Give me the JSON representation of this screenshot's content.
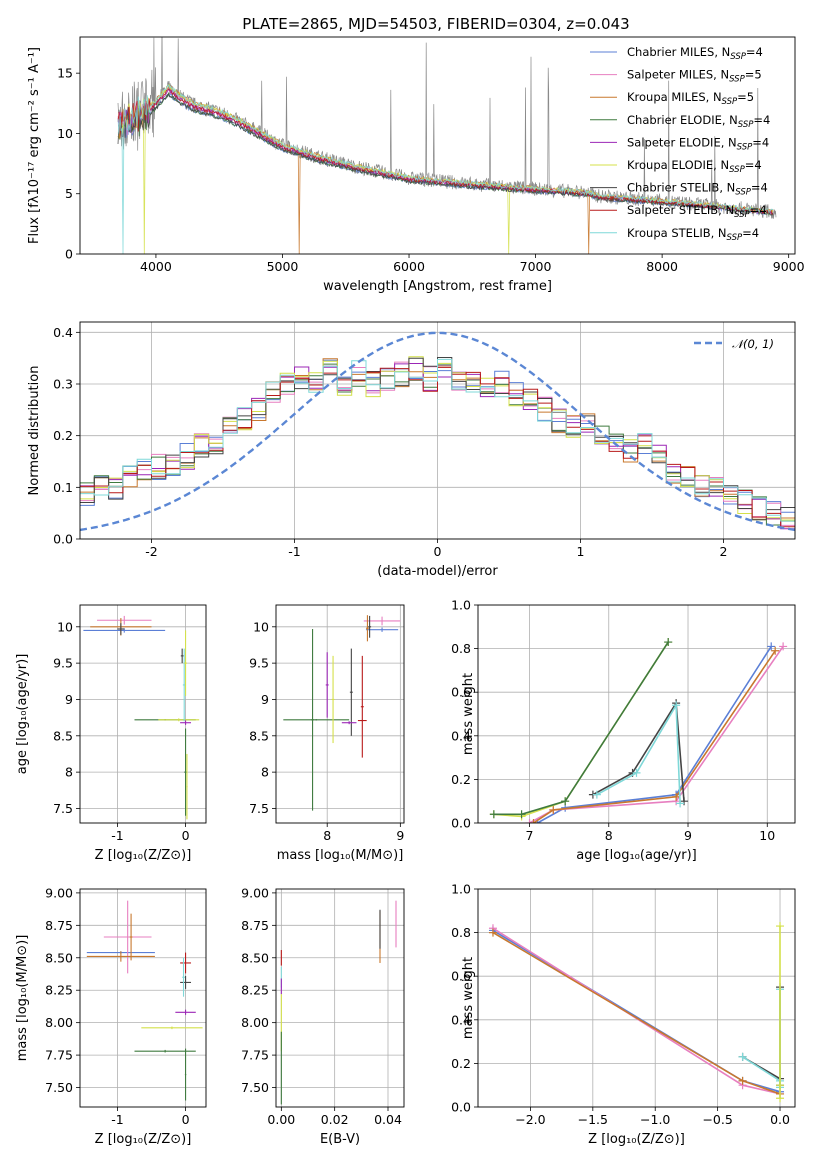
{
  "page_title": "PLATE=2865, MJD=54503, FIBERID=0304, z=0.043",
  "colors": {
    "Chabrier MILES": "#5b7fd6",
    "Salpeter MILES": "#e77fc0",
    "Kroupa MILES": "#c8782e",
    "Chabrier ELODIE": "#3f7a3f",
    "Salpeter ELODIE": "#9b26b6",
    "Kroupa ELODIE": "#d4e04a",
    "Chabrier STELIB": "#444444",
    "Salpeter STELIB": "#b81a1a",
    "Kroupa STELIB": "#7fd8d8",
    "gray_spectrum": "#8a8a8a",
    "orange_model": "#ee7733"
  },
  "chart_data": [
    {
      "id": "spectrum",
      "type": "line",
      "title": "PLATE=2865, MJD=54503, FIBERID=0304, z=0.043",
      "xlabel": "wavelength [Angstrom, rest frame]",
      "ylabel": "Flux [fλ10⁻¹⁷ erg cm⁻² s⁻¹ A⁻¹]",
      "xlim": [
        3400,
        9050
      ],
      "ylim": [
        0,
        18
      ],
      "xticks": [
        4000,
        5000,
        6000,
        7000,
        8000,
        9000
      ],
      "yticks": [
        0,
        5,
        10,
        15
      ],
      "legend_position": "top-right",
      "legend": [
        {
          "base": "Chabrier MILES, N",
          "sub": "SSP",
          "tail": "=4"
        },
        {
          "base": "Salpeter MILES, N",
          "sub": "SSP",
          "tail": "=5"
        },
        {
          "base": "Kroupa MILES, N",
          "sub": "SSP",
          "tail": "=5"
        },
        {
          "base": "Chabrier ELODIE, N",
          "sub": "SSP",
          "tail": "=4"
        },
        {
          "base": "Salpeter ELODIE, N",
          "sub": "SSP",
          "tail": "=4"
        },
        {
          "base": "Kroupa ELODIE, N",
          "sub": "SSP",
          "tail": "=4"
        },
        {
          "base": "Chabrier STELIB, N",
          "sub": "SSP",
          "tail": "=4"
        },
        {
          "base": "Salpeter STELIB, N",
          "sub": "SSP",
          "tail": "=4"
        },
        {
          "base": "Kroupa STELIB, N",
          "sub": "SSP",
          "tail": "=4"
        }
      ],
      "envelope": {
        "x": [
          3700,
          3800,
          3900,
          4000,
          4100,
          4200,
          4300,
          4500,
          4700,
          5000,
          5300,
          5600,
          6000,
          6500,
          7000,
          7400,
          7500,
          8000,
          8500,
          8880
        ],
        "y": [
          10.6,
          11.4,
          11.7,
          12.6,
          13.8,
          13.0,
          12.4,
          11.8,
          10.8,
          9.0,
          8.0,
          7.2,
          6.3,
          5.8,
          5.4,
          5.1,
          4.8,
          4.4,
          3.9,
          3.5
        ]
      },
      "series_x_range": {
        "models_start": 3700,
        "models_end": 8880,
        "data_end": 8900
      }
    },
    {
      "id": "residuals",
      "type": "step",
      "xlabel": "(data-model)/error",
      "ylabel": "Normed distribution",
      "xlim": [
        -2.5,
        2.5
      ],
      "ylim": [
        0,
        0.42
      ],
      "xticks": [
        -2,
        -1,
        0,
        1,
        2
      ],
      "yticks": [
        0.0,
        0.1,
        0.2,
        0.3,
        0.4
      ],
      "ytick_labels": [
        "0.0",
        "0.1",
        "0.2",
        "0.3",
        "0.4"
      ],
      "legend_position": "top-right",
      "gaussian_label": "𝒩(0, 1)",
      "base_profile": [
        0.085,
        0.1,
        0.1,
        0.12,
        0.13,
        0.14,
        0.14,
        0.16,
        0.18,
        0.19,
        0.22,
        0.23,
        0.25,
        0.28,
        0.3,
        0.31,
        0.3,
        0.33,
        0.3,
        0.32,
        0.3,
        0.31,
        0.32,
        0.33,
        0.31,
        0.33,
        0.31,
        0.3,
        0.29,
        0.3,
        0.28,
        0.27,
        0.25,
        0.23,
        0.22,
        0.23,
        0.2,
        0.19,
        0.17,
        0.18,
        0.16,
        0.13,
        0.12,
        0.1,
        0.1,
        0.09,
        0.07,
        0.06,
        0.05,
        0.04
      ]
    },
    {
      "id": "age-vs-Z",
      "type": "errorbar",
      "xlabel": "Z [log₁₀(Z/Z⊙)]",
      "ylabel": "age [log₁₀(age/yr)]",
      "xlim": [
        -1.55,
        0.3
      ],
      "ylim": [
        7.3,
        10.3
      ],
      "xticks": [
        -1,
        0
      ],
      "yticks": [
        7.5,
        8.0,
        8.5,
        9.0,
        9.5,
        10.0
      ],
      "points": [
        {
          "x": -0.9,
          "y": 9.95,
          "xerr": 0.6,
          "yerr": 0.03,
          "c": "Chabrier MILES"
        },
        {
          "x": -0.9,
          "y": 10.09,
          "xerr": 0.4,
          "yerr": 0.06,
          "c": "Salpeter MILES"
        },
        {
          "x": -0.95,
          "y": 10.0,
          "xerr": 0.45,
          "yerr": 0.12,
          "c": "Kroupa MILES"
        },
        {
          "x": -0.95,
          "y": 9.97,
          "xerr": 0.05,
          "yerr": 0.08,
          "c": "Chabrier STELIB"
        },
        {
          "x": -0.3,
          "y": 8.72,
          "xerr": 0.45,
          "yerr": 0.01,
          "c": "Chabrier ELODIE"
        },
        {
          "x": -0.1,
          "y": 8.72,
          "xerr": 0.3,
          "yerr": 0.02,
          "c": "Kroupa ELODIE"
        },
        {
          "x": 0.0,
          "y": 8.68,
          "xerr": 0.08,
          "yerr": 0.03,
          "c": "Salpeter ELODIE"
        },
        {
          "x": -0.05,
          "y": 9.6,
          "xerr": 0.02,
          "yerr": 0.1,
          "c": "Chabrier STELIB"
        },
        {
          "x": -0.02,
          "y": 9.2,
          "xerr": 0.02,
          "yerr": 0.5,
          "c": "Kroupa STELIB"
        },
        {
          "x": 0.0,
          "y": 9.5,
          "xerr": 0.02,
          "yerr": 0.45,
          "c": "Kroupa ELODIE"
        },
        {
          "x": 0.0,
          "y": 8.0,
          "xerr": 0.02,
          "yerr": 0.6,
          "c": "Chabrier ELODIE"
        },
        {
          "x": 0.02,
          "y": 7.8,
          "xerr": 0.01,
          "yerr": 0.45,
          "c": "Kroupa ELODIE"
        }
      ]
    },
    {
      "id": "age-vs-mass",
      "type": "errorbar",
      "xlabel": "mass [log₁₀(M/M⊙)]",
      "ylabel": "",
      "xlim": [
        7.3,
        9.05
      ],
      "ylim": [
        7.3,
        10.3
      ],
      "xticks": [
        8,
        9
      ],
      "yticks": [
        7.5,
        8.0,
        8.5,
        9.0,
        9.5,
        10.0
      ],
      "points": [
        {
          "x": 8.75,
          "y": 9.96,
          "xerr": 0.22,
          "yerr": 0.03,
          "c": "Chabrier MILES"
        },
        {
          "x": 8.75,
          "y": 10.08,
          "xerr": 0.25,
          "yerr": 0.06,
          "c": "Salpeter MILES"
        },
        {
          "x": 8.55,
          "y": 9.98,
          "xerr": 0.02,
          "yerr": 0.18,
          "c": "Kroupa MILES"
        },
        {
          "x": 8.58,
          "y": 10.0,
          "xerr": 0.02,
          "yerr": 0.15,
          "c": "Chabrier STELIB"
        },
        {
          "x": 7.85,
          "y": 8.72,
          "xerr": 0.45,
          "yerr": 0.01,
          "c": "Chabrier ELODIE"
        },
        {
          "x": 7.8,
          "y": 8.72,
          "xerr": 0.02,
          "yerr": 1.25,
          "c": "Chabrier ELODIE"
        },
        {
          "x": 8.0,
          "y": 9.2,
          "xerr": 0.02,
          "yerr": 0.45,
          "c": "Salpeter ELODIE"
        },
        {
          "x": 8.08,
          "y": 9.0,
          "xerr": 0.02,
          "yerr": 0.6,
          "c": "Kroupa ELODIE"
        },
        {
          "x": 8.33,
          "y": 9.1,
          "xerr": 0.02,
          "yerr": 0.6,
          "c": "Chabrier STELIB"
        },
        {
          "x": 8.3,
          "y": 8.68,
          "xerr": 0.1,
          "yerr": 0.02,
          "c": "Salpeter ELODIE"
        },
        {
          "x": 8.48,
          "y": 8.9,
          "xerr": 0.02,
          "yerr": 0.7,
          "c": "Salpeter STELIB"
        },
        {
          "x": 8.48,
          "y": 8.71,
          "xerr": 0.06,
          "yerr": 0.01,
          "c": "Salpeter STELIB"
        }
      ]
    },
    {
      "id": "massweight-vs-age",
      "type": "line",
      "xlabel": "age [log₁₀(age/yr)]",
      "ylabel": "mass weight",
      "xlim": [
        6.35,
        10.35
      ],
      "ylim": [
        0,
        1.0
      ],
      "xticks": [
        7,
        8,
        9,
        10
      ],
      "yticks": [
        0.0,
        0.2,
        0.4,
        0.6,
        0.8,
        1.0
      ],
      "ytick_labels": [
        "0.0",
        "0.2",
        "0.4",
        "0.6",
        "0.8",
        "1.0"
      ],
      "series": [
        {
          "c": "Chabrier MILES",
          "x": [
            7.1,
            7.45,
            8.85,
            10.05
          ],
          "y": [
            0.0,
            0.07,
            0.13,
            0.81
          ]
        },
        {
          "c": "Salpeter MILES",
          "x": [
            7.0,
            7.3,
            8.85,
            10.2
          ],
          "y": [
            0.0,
            0.06,
            0.1,
            0.81
          ]
        },
        {
          "c": "Kroupa MILES",
          "x": [
            7.05,
            7.3,
            8.85,
            10.1
          ],
          "y": [
            0.0,
            0.06,
            0.12,
            0.79
          ]
        },
        {
          "c": "Kroupa ELODIE",
          "x": [
            6.55,
            6.9,
            7.45,
            8.75
          ],
          "y": [
            0.04,
            0.03,
            0.1,
            0.83
          ]
        },
        {
          "c": "Chabrier ELODIE",
          "x": [
            6.55,
            6.9,
            7.45,
            8.75
          ],
          "y": [
            0.04,
            0.04,
            0.1,
            0.83
          ]
        },
        {
          "c": "Chabrier STELIB",
          "x": [
            7.8,
            8.3,
            8.85,
            8.95
          ],
          "y": [
            0.13,
            0.23,
            0.55,
            0.1
          ]
        },
        {
          "c": "Kroupa STELIB",
          "x": [
            7.85,
            8.35,
            8.85,
            8.9
          ],
          "y": [
            0.13,
            0.23,
            0.54,
            0.09
          ]
        }
      ]
    },
    {
      "id": "mass-vs-Z",
      "type": "errorbar",
      "xlabel": "Z [log₁₀(Z/Z⊙)]",
      "ylabel": "mass [log₁₀(M/M⊙)]",
      "xlim": [
        -1.55,
        0.3
      ],
      "ylim": [
        7.35,
        9.03
      ],
      "xticks": [
        -1,
        0
      ],
      "yticks": [
        7.5,
        7.75,
        8.0,
        8.25,
        8.5,
        8.75,
        9.0
      ],
      "ytick_labels": [
        "7.50",
        "7.75",
        "8.00",
        "8.25",
        "8.50",
        "8.75",
        "9.00"
      ],
      "points": [
        {
          "x": -0.95,
          "y": 8.54,
          "xerr": 0.5,
          "yerr": 0.01,
          "c": "Chabrier MILES"
        },
        {
          "x": -0.85,
          "y": 8.66,
          "xerr": 0.35,
          "yerr": 0.28,
          "c": "Salpeter MILES"
        },
        {
          "x": -0.95,
          "y": 8.51,
          "xerr": 0.5,
          "yerr": 0.04,
          "c": "Kroupa MILES"
        },
        {
          "x": -0.8,
          "y": 8.66,
          "xerr": 0.02,
          "yerr": 0.18,
          "c": "Kroupa MILES"
        },
        {
          "x": -0.3,
          "y": 7.78,
          "xerr": 0.45,
          "yerr": 0.01,
          "c": "Chabrier ELODIE"
        },
        {
          "x": -0.2,
          "y": 7.96,
          "xerr": 0.45,
          "yerr": 0.01,
          "c": "Kroupa ELODIE"
        },
        {
          "x": 0.0,
          "y": 8.08,
          "xerr": 0.15,
          "yerr": 0.02,
          "c": "Salpeter ELODIE"
        },
        {
          "x": 0.0,
          "y": 8.46,
          "xerr": 0.08,
          "yerr": 0.08,
          "c": "Salpeter STELIB"
        },
        {
          "x": 0.0,
          "y": 8.31,
          "xerr": 0.08,
          "yerr": 0.05,
          "c": "Chabrier STELIB"
        },
        {
          "x": -0.03,
          "y": 8.35,
          "xerr": 0.02,
          "yerr": 0.15,
          "c": "Kroupa STELIB"
        },
        {
          "x": 0.0,
          "y": 7.6,
          "xerr": 0.01,
          "yerr": 0.2,
          "c": "Chabrier ELODIE"
        }
      ]
    },
    {
      "id": "mass-vs-EBV",
      "type": "errorbar",
      "xlabel": "E(B-V)",
      "ylabel": "",
      "xlim": [
        -0.002,
        0.046
      ],
      "ylim": [
        7.35,
        9.03
      ],
      "xticks": [
        0.0,
        0.02,
        0.04
      ],
      "xtick_labels": [
        "0.00",
        "0.02",
        "0.04"
      ],
      "yticks": [
        7.5,
        7.75,
        8.0,
        8.25,
        8.5,
        8.75,
        9.0
      ],
      "ytick_labels": [
        "7.50",
        "7.75",
        "8.00",
        "8.25",
        "8.50",
        "8.75",
        "9.00"
      ],
      "points": [
        {
          "x": 0.0,
          "y": 8.5,
          "xerr": 0.0,
          "yerr": 0.06,
          "c": "Salpeter STELIB"
        },
        {
          "x": 0.0,
          "y": 8.35,
          "xerr": 0.0,
          "yerr": 0.08,
          "c": "Kroupa STELIB"
        },
        {
          "x": 0.0,
          "y": 8.28,
          "xerr": 0.0,
          "yerr": 0.06,
          "c": "Salpeter ELODIE"
        },
        {
          "x": 0.0,
          "y": 8.0,
          "xerr": 0.0,
          "yerr": 0.22,
          "c": "Kroupa ELODIE"
        },
        {
          "x": 0.0,
          "y": 7.65,
          "xerr": 0.0,
          "yerr": 0.28,
          "c": "Chabrier ELODIE"
        },
        {
          "x": 0.037,
          "y": 8.66,
          "xerr": 0.0,
          "yerr": 0.2,
          "c": "Kroupa MILES"
        },
        {
          "x": 0.037,
          "y": 8.72,
          "xerr": 0.0,
          "yerr": 0.15,
          "c": "Chabrier STELIB"
        },
        {
          "x": 0.043,
          "y": 8.76,
          "xerr": 0.0,
          "yerr": 0.18,
          "c": "Salpeter MILES"
        }
      ]
    },
    {
      "id": "massweight-vs-Z",
      "type": "line",
      "xlabel": "Z [log₁₀(Z/Z⊙)]",
      "ylabel": "mass weight",
      "xlim": [
        -2.42,
        0.12
      ],
      "ylim": [
        0,
        1.0
      ],
      "xticks": [
        -2.0,
        -1.5,
        -1.0,
        -0.5,
        0.0
      ],
      "xtick_labels": [
        "−2.0",
        "−1.5",
        "−1.0",
        "−0.5",
        "0.0"
      ],
      "yticks": [
        0.0,
        0.2,
        0.4,
        0.6,
        0.8,
        1.0
      ],
      "ytick_labels": [
        "0.0",
        "0.2",
        "0.4",
        "0.6",
        "0.8",
        "1.0"
      ],
      "series": [
        {
          "c": "Chabrier MILES",
          "x": [
            -2.3,
            -0.3,
            0.0
          ],
          "y": [
            0.81,
            0.12,
            0.07
          ]
        },
        {
          "c": "Salpeter MILES",
          "x": [
            -2.3,
            -0.3,
            0.0
          ],
          "y": [
            0.82,
            0.1,
            0.06
          ]
        },
        {
          "c": "Kroupa MILES",
          "x": [
            -2.3,
            -0.3,
            0.0
          ],
          "y": [
            0.8,
            0.12,
            0.06
          ]
        },
        {
          "c": "Chabrier STELIB",
          "x": [
            -0.3,
            0.0,
            0.0,
            0.0
          ],
          "y": [
            0.23,
            0.13,
            0.55,
            0.1
          ]
        },
        {
          "c": "Kroupa STELIB",
          "x": [
            -0.3,
            0.0,
            0.0,
            0.0
          ],
          "y": [
            0.23,
            0.12,
            0.54,
            0.09
          ]
        },
        {
          "c": "Kroupa ELODIE",
          "x": [
            0.0,
            0.0,
            0.0
          ],
          "y": [
            0.83,
            0.04,
            0.1
          ]
        }
      ]
    }
  ]
}
